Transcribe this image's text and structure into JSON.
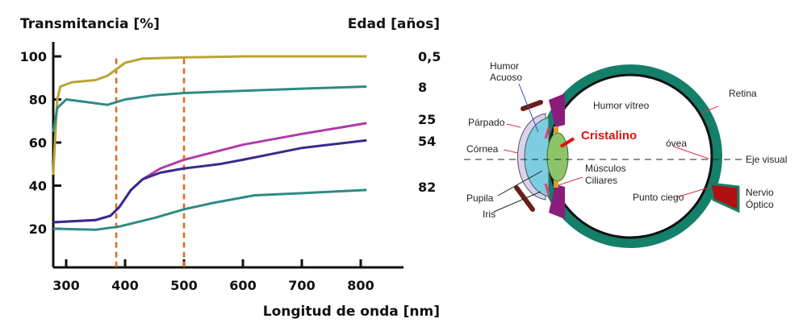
{
  "chart_data": {
    "type": "line",
    "title": "",
    "ylabel": "Transmitancia [%]",
    "xlabel": "Longitud de onda [nm]",
    "legend_title": "Edad [años]",
    "legend_placement": "right",
    "xlim": [
      278,
      860
    ],
    "ylim": [
      2,
      104
    ],
    "xticks": [
      300,
      400,
      500,
      600,
      700,
      800
    ],
    "xtick_labels": [
      "300",
      "400",
      "500",
      "600",
      "700",
      "800"
    ],
    "yticks": [
      20,
      40,
      60,
      80,
      100
    ],
    "ytick_labels": [
      "20",
      "40",
      "60",
      "80",
      "100"
    ],
    "grid": false,
    "reference_lines": [
      385,
      500
    ],
    "reference_color": "#e8651a",
    "series": [
      {
        "name": "0,5",
        "color": "#b9a437",
        "x": [
          278,
          285,
          290,
          310,
          350,
          370,
          385,
          400,
          430,
          500,
          600,
          810
        ],
        "y": [
          45,
          80,
          86,
          88,
          89,
          91,
          94,
          97,
          99,
          99.5,
          100,
          100
        ]
      },
      {
        "name": "8",
        "color": "#2e8a86",
        "x": [
          278,
          285,
          300,
          330,
          370,
          400,
          450,
          500,
          600,
          700,
          810
        ],
        "y": [
          65,
          76,
          80,
          79,
          77.5,
          80,
          82,
          83,
          84,
          85,
          86
        ]
      },
      {
        "name": "25",
        "color": "#b23aa8",
        "x": [
          278,
          350,
          375,
          390,
          410,
          430,
          460,
          500,
          600,
          700,
          810
        ],
        "y": [
          23,
          24,
          26,
          30,
          38,
          43,
          48,
          52,
          59,
          64,
          69
        ]
      },
      {
        "name": "54",
        "color": "#3a2a8c",
        "x": [
          278,
          350,
          375,
          390,
          410,
          430,
          460,
          500,
          560,
          600,
          700,
          810
        ],
        "y": [
          23,
          24,
          26,
          30,
          38,
          43,
          46,
          48,
          50,
          52,
          57.5,
          61
        ]
      },
      {
        "name": "82",
        "color": "#2e8a86",
        "x": [
          278,
          350,
          390,
          450,
          500,
          550,
          620,
          700,
          810
        ],
        "y": [
          20,
          19.5,
          21,
          25,
          29,
          32,
          35.5,
          36.5,
          38
        ]
      }
    ]
  },
  "diagram": {
    "labels": {
      "humor_acuoso_1": "Humor",
      "humor_acuoso_2": "Acuoso",
      "retina": "Retina",
      "humor_vitreo": "Humor vítreo",
      "parpado": "Párpado",
      "cristalino": "Cristalino",
      "fovea": "óvea",
      "cornea": "Córnea",
      "eje_visual": "Eje visual",
      "musculos_1": "Músculos",
      "musculos_2": "Ciliares",
      "pupila": "Pupila",
      "iris": "Iris",
      "punto_ciego": "Punto ciego",
      "nervio_1": "Nervio",
      "nervio_2": "Óptico"
    },
    "highlight_color": "#e01010"
  }
}
